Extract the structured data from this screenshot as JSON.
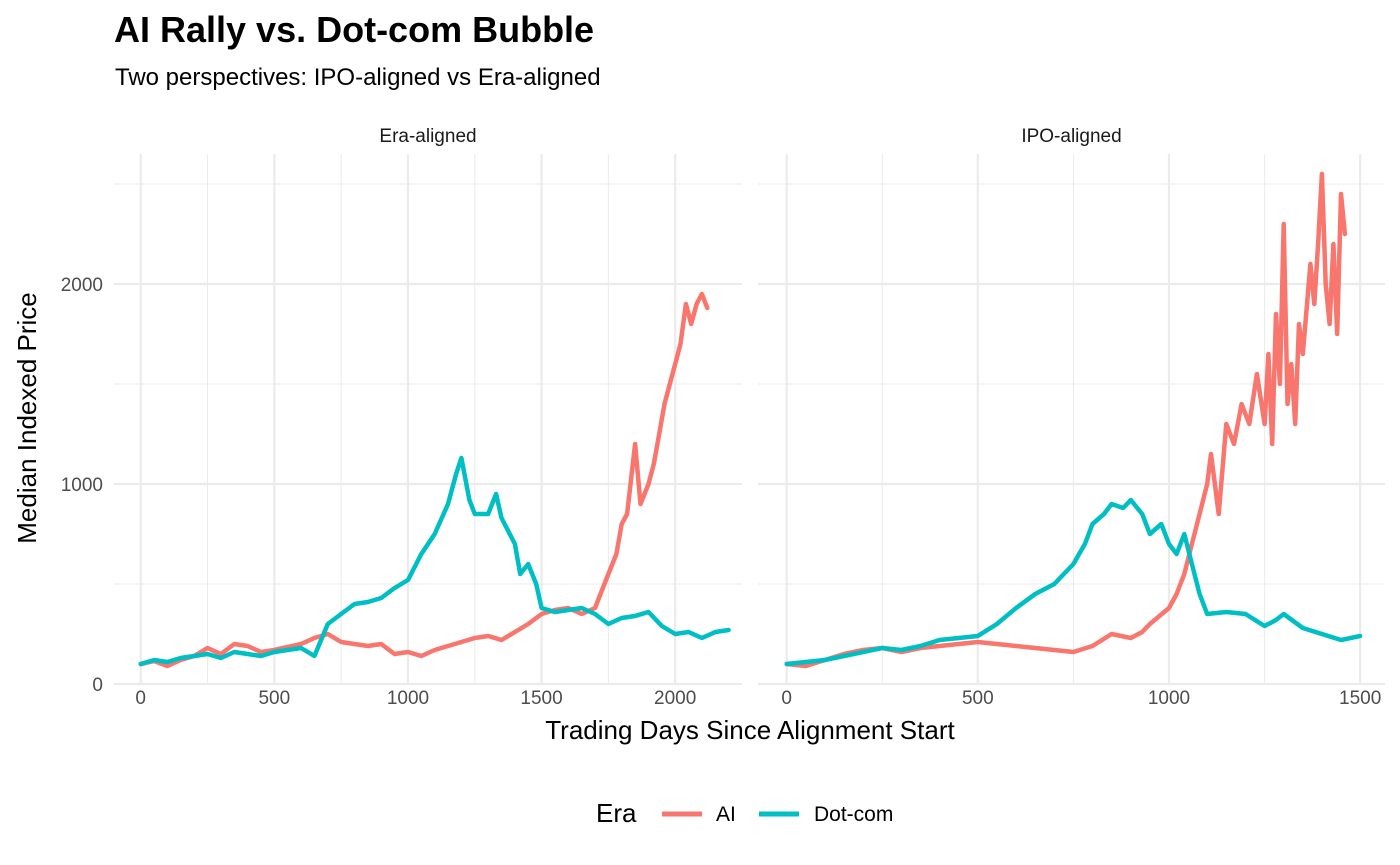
{
  "title": "AI Rally vs. Dot-com Bubble",
  "subtitle": "Two perspectives: IPO-aligned vs Era-aligned",
  "colors": {
    "AI": "#F8766D",
    "Dot-com": "#00BFC4",
    "grid": "#EBEBEB"
  },
  "chart_data": {
    "type": "line",
    "xlabel": "Trading Days Since Alignment Start",
    "ylabel": "Median Indexed Price",
    "ylim": [
      0,
      2650
    ],
    "yticks": [
      0,
      1000,
      2000
    ],
    "grid": true,
    "legend": {
      "title": "Era",
      "placement": "bottom",
      "entries": [
        "AI",
        "Dot-com"
      ]
    },
    "panels": [
      {
        "strip": "Era-aligned",
        "xlim": [
          -100,
          2250
        ],
        "xticks": [
          0,
          500,
          1000,
          1500,
          2000
        ],
        "series": [
          {
            "name": "AI",
            "x": [
              0,
              50,
              100,
              150,
              200,
              250,
              300,
              350,
              400,
              450,
              500,
              550,
              600,
              650,
              700,
              750,
              800,
              850,
              900,
              950,
              1000,
              1050,
              1100,
              1150,
              1200,
              1250,
              1300,
              1350,
              1400,
              1450,
              1500,
              1550,
              1600,
              1650,
              1700,
              1750,
              1780,
              1800,
              1820,
              1850,
              1870,
              1900,
              1920,
              1940,
              1960,
              1980,
              2000,
              2020,
              2040,
              2060,
              2080,
              2100,
              2120
            ],
            "y": [
              100,
              115,
              90,
              120,
              140,
              180,
              150,
              200,
              190,
              160,
              170,
              185,
              200,
              230,
              250,
              210,
              200,
              190,
              200,
              150,
              160,
              140,
              170,
              190,
              210,
              230,
              240,
              220,
              260,
              300,
              350,
              370,
              380,
              350,
              380,
              550,
              650,
              800,
              850,
              1200,
              900,
              1000,
              1100,
              1250,
              1400,
              1500,
              1600,
              1700,
              1900,
              1800,
              1900,
              1950,
              1880
            ]
          },
          {
            "name": "Dot-com",
            "x": [
              0,
              50,
              100,
              150,
              200,
              250,
              300,
              350,
              400,
              450,
              500,
              550,
              600,
              650,
              700,
              750,
              800,
              850,
              900,
              950,
              1000,
              1050,
              1100,
              1150,
              1180,
              1200,
              1230,
              1250,
              1300,
              1330,
              1350,
              1400,
              1420,
              1450,
              1480,
              1500,
              1550,
              1600,
              1650,
              1700,
              1750,
              1800,
              1850,
              1900,
              1950,
              2000,
              2050,
              2100,
              2150,
              2200
            ],
            "y": [
              100,
              120,
              110,
              130,
              140,
              150,
              130,
              160,
              150,
              140,
              160,
              170,
              180,
              140,
              300,
              350,
              400,
              410,
              430,
              480,
              520,
              650,
              750,
              900,
              1050,
              1130,
              920,
              850,
              850,
              950,
              830,
              700,
              550,
              600,
              500,
              380,
              360,
              370,
              380,
              350,
              300,
              330,
              340,
              360,
              290,
              250,
              260,
              230,
              260,
              270
            ]
          }
        ]
      },
      {
        "strip": "IPO-aligned",
        "xlim": [
          -75,
          1565
        ],
        "xticks": [
          0,
          500,
          1000,
          1500
        ],
        "series": [
          {
            "name": "AI",
            "x": [
              0,
              50,
              100,
              150,
              200,
              250,
              300,
              350,
              400,
              450,
              500,
              550,
              600,
              650,
              700,
              750,
              800,
              850,
              900,
              930,
              950,
              1000,
              1020,
              1040,
              1060,
              1080,
              1100,
              1110,
              1130,
              1150,
              1170,
              1190,
              1210,
              1230,
              1250,
              1260,
              1270,
              1280,
              1290,
              1300,
              1310,
              1320,
              1330,
              1340,
              1350,
              1370,
              1380,
              1390,
              1400,
              1410,
              1420,
              1430,
              1440,
              1450,
              1460
            ],
            "y": [
              100,
              90,
              120,
              150,
              170,
              180,
              160,
              180,
              190,
              200,
              210,
              200,
              190,
              180,
              170,
              160,
              190,
              250,
              230,
              260,
              300,
              380,
              450,
              550,
              700,
              850,
              1000,
              1150,
              850,
              1300,
              1200,
              1400,
              1300,
              1550,
              1300,
              1650,
              1200,
              1850,
              1500,
              2300,
              1400,
              1600,
              1300,
              1800,
              1650,
              2100,
              1900,
              2200,
              2550,
              2000,
              1800,
              2200,
              1750,
              2450,
              2250
            ]
          },
          {
            "name": "Dot-com",
            "x": [
              0,
              50,
              100,
              150,
              200,
              250,
              300,
              350,
              400,
              450,
              500,
              550,
              600,
              650,
              700,
              750,
              780,
              800,
              830,
              850,
              880,
              900,
              930,
              950,
              980,
              1000,
              1020,
              1040,
              1060,
              1080,
              1100,
              1150,
              1200,
              1250,
              1280,
              1300,
              1350,
              1400,
              1450,
              1500
            ],
            "y": [
              100,
              110,
              120,
              140,
              160,
              180,
              170,
              190,
              220,
              230,
              240,
              300,
              380,
              450,
              500,
              600,
              700,
              800,
              850,
              900,
              880,
              920,
              850,
              750,
              800,
              700,
              650,
              750,
              600,
              450,
              350,
              360,
              350,
              290,
              320,
              350,
              280,
              250,
              220,
              240
            ]
          }
        ]
      }
    ]
  }
}
